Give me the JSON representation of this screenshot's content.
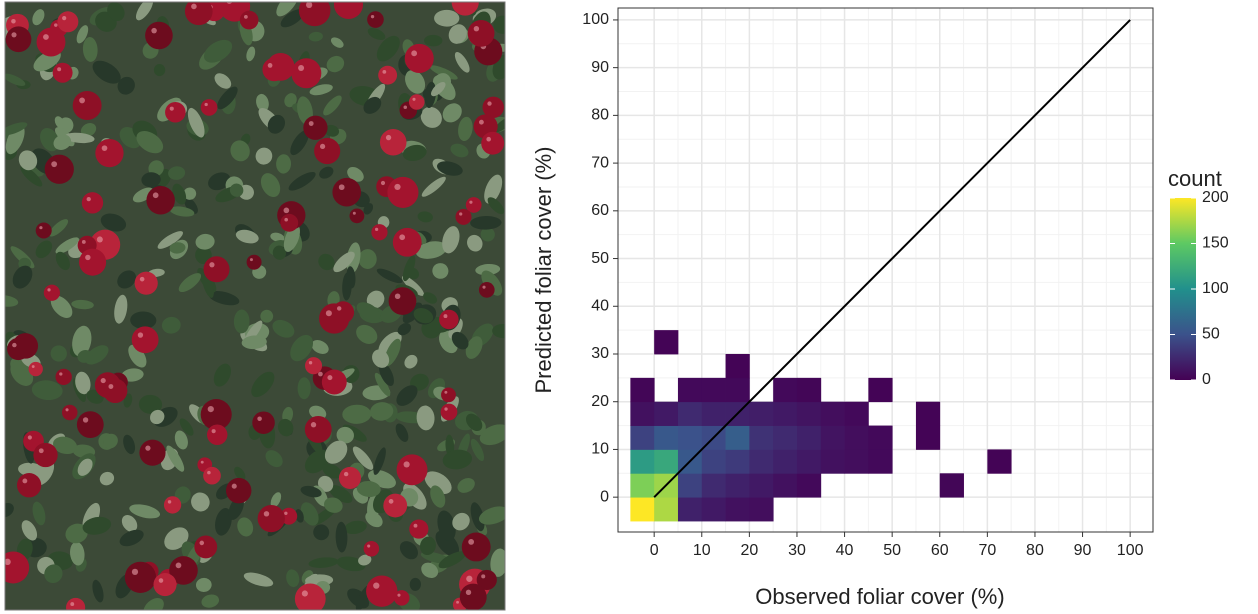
{
  "chart_data": {
    "type": "heatmap2d",
    "x_label": "Observed foliar cover (%)",
    "y_label": "Predicted foliar cover (%)",
    "xlim": [
      -7.6,
      104.8
    ],
    "ylim": [
      -7.3,
      102.5
    ],
    "xticks": [
      0,
      10,
      20,
      30,
      40,
      50,
      60,
      70,
      80,
      90,
      100
    ],
    "yticks": [
      0,
      10,
      20,
      30,
      40,
      50,
      60,
      70,
      80,
      90,
      100
    ],
    "grid": true,
    "minor_grid": true,
    "binwidth": 5,
    "x": [
      -5,
      0,
      5,
      10,
      15,
      20,
      -5,
      0,
      5,
      10,
      15,
      20,
      25,
      30,
      60,
      -5,
      0,
      5,
      10,
      15,
      20,
      25,
      30,
      35,
      40,
      45,
      70,
      -5,
      0,
      5,
      10,
      15,
      20,
      25,
      30,
      35,
      40,
      45,
      55,
      -5,
      0,
      5,
      10,
      15,
      20,
      25,
      30,
      35,
      40,
      55,
      -5,
      5,
      10,
      15,
      25,
      30,
      45,
      15,
      0
    ],
    "y": [
      -5,
      -5,
      -5,
      -5,
      -5,
      -5,
      0,
      0,
      0,
      0,
      0,
      0,
      0,
      0,
      0,
      5,
      5,
      5,
      5,
      5,
      5,
      5,
      5,
      5,
      5,
      5,
      5,
      10,
      10,
      10,
      10,
      10,
      10,
      10,
      10,
      10,
      10,
      10,
      10,
      15,
      15,
      15,
      15,
      15,
      15,
      15,
      15,
      15,
      15,
      15,
      20,
      20,
      20,
      20,
      20,
      20,
      20,
      25,
      30
    ],
    "values": [
      200,
      175,
      20,
      15,
      10,
      8,
      160,
      170,
      40,
      25,
      20,
      15,
      10,
      5,
      3,
      110,
      120,
      55,
      40,
      35,
      25,
      20,
      15,
      10,
      8,
      5,
      2,
      40,
      55,
      50,
      45,
      60,
      30,
      25,
      20,
      12,
      8,
      5,
      2,
      10,
      15,
      25,
      20,
      20,
      18,
      15,
      12,
      8,
      5,
      2,
      3,
      5,
      5,
      5,
      5,
      3,
      2,
      2,
      2
    ],
    "line": {
      "x": [
        0,
        100
      ],
      "y": [
        0,
        100
      ],
      "color": "#000000"
    },
    "colorbar_title": "count",
    "colorbar_lim": [
      0,
      200
    ],
    "colorbar_ticks": [
      0,
      50,
      100,
      150,
      200
    ],
    "colorscale": [
      "#440154",
      "#3b528b",
      "#21908c",
      "#5dc963",
      "#fde725"
    ]
  }
}
